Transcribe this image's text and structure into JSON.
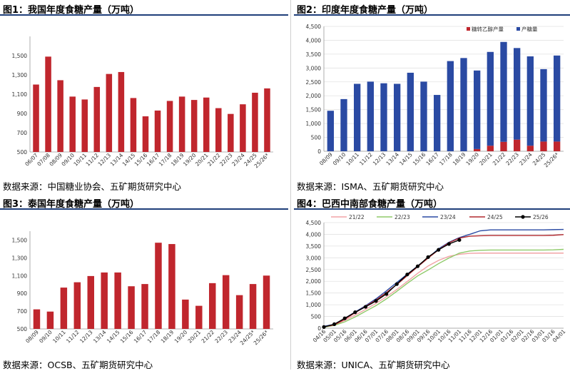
{
  "chart_data": [
    {
      "type": "bar",
      "title": "图1：我国年度食糖产量（万吨）",
      "source": "数据来源：中国糖业协会、五矿期货研究中心",
      "categories": [
        "06/07",
        "07/08",
        "08/09",
        "09/10",
        "10/11",
        "11/12",
        "12/13",
        "13/14",
        "14/15",
        "15/16",
        "16/17",
        "17/18",
        "18/19",
        "19/20",
        "20/21",
        "21/22",
        "22/23",
        "23/24",
        "24/25",
        "25/26*"
      ],
      "series": [
        {
          "name": "",
          "values": [
            1200,
            1490,
            1245,
            1075,
            1045,
            1175,
            1310,
            1330,
            1060,
            870,
            930,
            1030,
            1075,
            1040,
            1065,
            955,
            895,
            995,
            1115,
            1160
          ]
        }
      ],
      "yticks": [
        "500",
        "700",
        "900",
        "1,100",
        "1,300",
        "1,500"
      ],
      "ylim": [
        500,
        1700
      ],
      "color": "#c0262d"
    },
    {
      "type": "bar",
      "stacked": true,
      "title": "图2：印度年度食糖产量（万吨）",
      "source": "数据来源：ISMA、五矿期货研究中心",
      "categories": [
        "08/09",
        "09/10",
        "10/11",
        "11/12",
        "12/13",
        "13/14",
        "14/15",
        "15/16",
        "16/17",
        "17/18",
        "18/19",
        "19/20",
        "20/21",
        "21/22",
        "22/23",
        "23/24",
        "24/25",
        "25/26*"
      ],
      "series": [
        {
          "name": "糖转乙醇产量",
          "color": "#c0262d",
          "values": [
            0,
            0,
            0,
            0,
            0,
            0,
            0,
            0,
            0,
            0,
            0,
            80,
            200,
            340,
            420,
            200,
            350,
            350
          ]
        },
        {
          "name": "产糖量",
          "color": "#2a4aa3",
          "values": [
            1460,
            1880,
            2430,
            2510,
            2450,
            2430,
            2830,
            2510,
            2030,
            3250,
            3360,
            2830,
            3380,
            3600,
            3300,
            3220,
            2610,
            3100
          ]
        }
      ],
      "yticks": [
        "0",
        "500",
        "1,000",
        "1,500",
        "2,000",
        "2,500",
        "3,000",
        "3,500",
        "4,000",
        "4,500"
      ],
      "ylim": [
        0,
        4500
      ],
      "legend": "top-right"
    },
    {
      "type": "bar",
      "title": "图3：泰国年度食糖产量（万吨）",
      "source": "数据来源：OCSB、五矿期货研究中心",
      "categories": [
        "08/09",
        "09/10",
        "10/11",
        "11/12",
        "12/13",
        "13/14",
        "14/15",
        "15/16",
        "16/17",
        "17/18",
        "18/19",
        "19/20",
        "20/21",
        "21/22",
        "22/23",
        "23/24",
        "24/25*",
        "25/26*"
      ],
      "series": [
        {
          "name": "",
          "values": [
            720,
            695,
            965,
            1025,
            1095,
            1135,
            1135,
            980,
            1005,
            1470,
            1455,
            830,
            760,
            1015,
            1105,
            880,
            1005,
            1100
          ]
        }
      ],
      "yticks": [
        "500",
        "700",
        "900",
        "1,100",
        "1,300",
        "1,500"
      ],
      "ylim": [
        500,
        1600
      ],
      "color": "#c0262d"
    },
    {
      "type": "line",
      "title": "图4：巴西中南部食糖产量（万吨）",
      "source": "数据来源：UNICA、五矿期货研究中心",
      "x": [
        "04/16",
        "05/01",
        "05/16",
        "06/01",
        "06/16",
        "07/01",
        "07/16",
        "08/01",
        "08/16",
        "09/01",
        "09/16",
        "10/01",
        "10/16",
        "11/01",
        "11/16",
        "12/01",
        "12/16",
        "01/01",
        "01/16",
        "02/01",
        "02/16",
        "03/01",
        "03/16",
        "04/01"
      ],
      "series": [
        {
          "name": "21/22",
          "color": "#f2a3a6",
          "values": [
            60,
            140,
            330,
            560,
            800,
            1060,
            1340,
            1650,
            1990,
            2340,
            2650,
            2890,
            3060,
            3150,
            3190,
            3200,
            3200,
            3200,
            3200,
            3200,
            3200,
            3200,
            3200,
            3200
          ]
        },
        {
          "name": "22/23",
          "color": "#8fca6a",
          "values": [
            40,
            120,
            270,
            480,
            720,
            960,
            1250,
            1570,
            1910,
            2230,
            2480,
            2750,
            2990,
            3200,
            3290,
            3320,
            3330,
            3330,
            3330,
            3330,
            3330,
            3330,
            3340,
            3360
          ]
        },
        {
          "name": "23/24",
          "color": "#2a4aa3",
          "values": [
            80,
            160,
            420,
            690,
            960,
            1250,
            1590,
            1950,
            2300,
            2650,
            3000,
            3380,
            3660,
            3860,
            4000,
            4150,
            4190,
            4190,
            4190,
            4190,
            4190,
            4190,
            4200,
            4210
          ]
        },
        {
          "name": "24/25",
          "color": "#b0282e",
          "values": [
            60,
            140,
            380,
            660,
            930,
            1200,
            1520,
            1860,
            2240,
            2620,
            2990,
            3340,
            3640,
            3840,
            3920,
            3940,
            3950,
            3950,
            3950,
            3950,
            3950,
            3950,
            3960,
            3990
          ]
        },
        {
          "name": "25/26",
          "color": "#000000",
          "values": [
            50,
            170,
            420,
            680,
            910,
            1160,
            1460,
            1880,
            2290,
            2640,
            3030,
            3340,
            3590,
            3760,
            null,
            null,
            null,
            null,
            null,
            null,
            null,
            null,
            null,
            null
          ]
        }
      ],
      "yticks": [
        "0",
        "500",
        "1,000",
        "1,500",
        "2,000",
        "2,500",
        "3,000",
        "3,500",
        "4,000",
        "4,500"
      ],
      "ylim": [
        0,
        4500
      ],
      "legend": "top"
    }
  ]
}
